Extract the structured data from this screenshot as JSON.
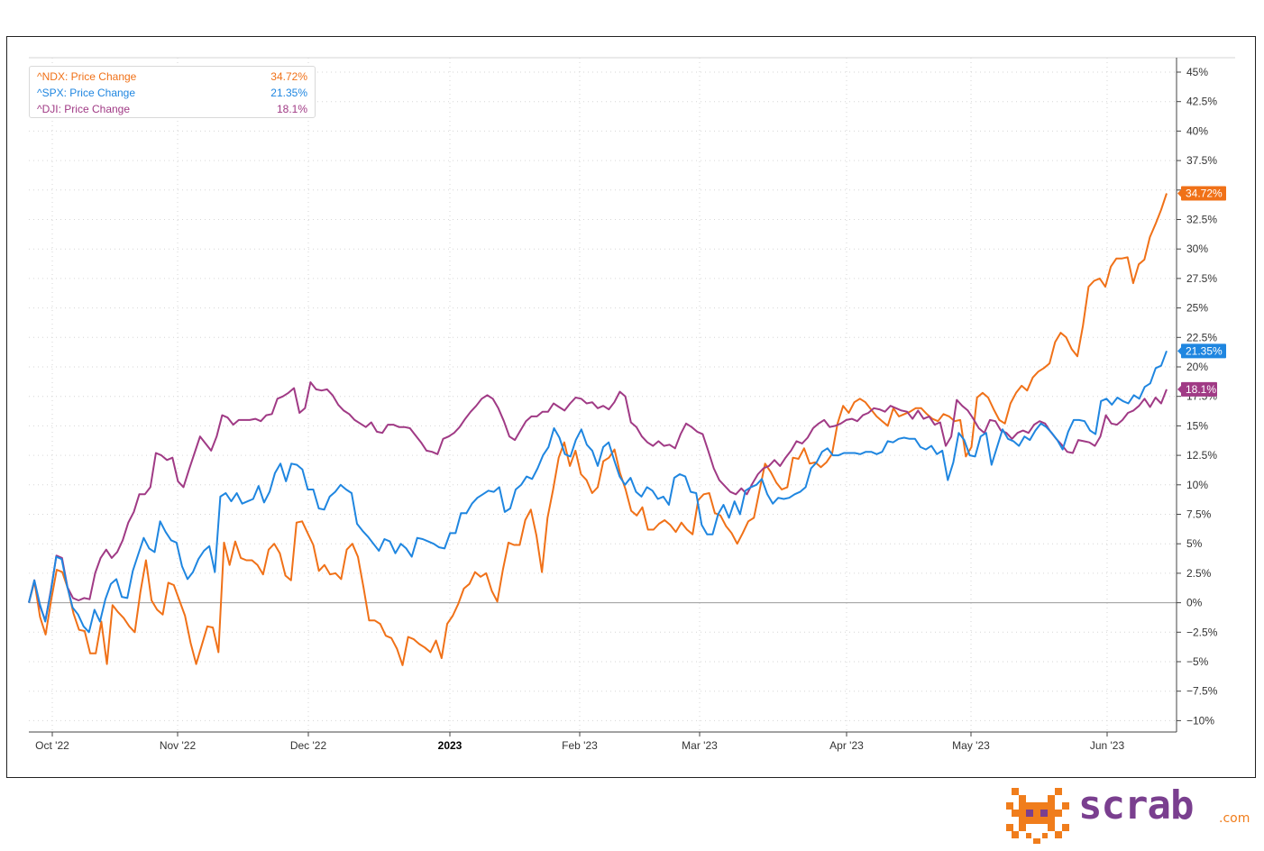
{
  "colors": {
    "ndx": "#f07118",
    "spx": "#1f86e0",
    "dji": "#a03a85",
    "grid": "#d6d6d6",
    "zero_line": "#9a9a9a"
  },
  "legend": [
    {
      "label": "^NDX: Price Change",
      "value": "34.72%",
      "color": "#f07118"
    },
    {
      "label": "^SPX: Price Change",
      "value": "21.35%",
      "color": "#1f86e0"
    },
    {
      "label": "^DJI: Price Change",
      "value": "18.1%",
      "color": "#a03a85"
    }
  ],
  "logo": {
    "word": "scrab",
    "suffix": ".com"
  },
  "chart_data": {
    "type": "line",
    "xlabel": "",
    "ylabel": "",
    "x_ticks": [
      "Oct '22",
      "Nov '22",
      "Dec '22",
      "2023",
      "Feb '23",
      "Mar '23",
      "Apr '23",
      "May '23",
      "Jun '23"
    ],
    "x_tick_bold": "2023",
    "y_ticks": [
      "45%",
      "42.5%",
      "40%",
      "37.5%",
      "35%",
      "32.5%",
      "30%",
      "27.5%",
      "25%",
      "22.5%",
      "20%",
      "17.5%",
      "15%",
      "12.5%",
      "10%",
      "7.5%",
      "5%",
      "2.5%",
      "0%",
      "−2.5%",
      "−5%",
      "−7.5%",
      "−10%"
    ],
    "ylim": [
      -11,
      46.5
    ],
    "grid": true,
    "legend_position": "top-left",
    "series": [
      {
        "name": "^NDX: Price Change",
        "last_label": "34.72%",
        "values": [
          0,
          1.8,
          -1.2,
          -2.7,
          0.2,
          2.8,
          2.6,
          1.2,
          -0.9,
          -2.3,
          -2.4,
          -4.3,
          -4.3,
          -1.6,
          -5.2,
          -0.2,
          -0.8,
          -1.3,
          -2.0,
          -2.5,
          0.9,
          3.6,
          0.2,
          -0.6,
          -1.0,
          1.7,
          1.5,
          0.2,
          -1.1,
          -3.4,
          -5.2,
          -3.6,
          -2.0,
          -2.1,
          -4.2,
          5.1,
          3.2,
          5.2,
          3.8,
          3.6,
          3.6,
          3.2,
          2.4,
          4.5,
          5.0,
          4.2,
          2.3,
          1.9,
          6.8,
          6.9,
          5.9,
          4.9,
          2.7,
          3.2,
          2.4,
          2.5,
          2.0,
          4.5,
          5.0,
          3.9,
          1.3,
          -1.5,
          -1.5,
          -1.8,
          -2.8,
          -3.0,
          -3.9,
          -5.3,
          -2.9,
          -3.1,
          -3.5,
          -3.8,
          -4.2,
          -3.2,
          -4.7,
          -1.8,
          -1.1,
          -0.1,
          1.2,
          1.6,
          2.6,
          2.2,
          2.5,
          1.0,
          0.1,
          2.8,
          5.1,
          4.9,
          4.9,
          7.0,
          7.9,
          5.7,
          2.6,
          7.2,
          9.6,
          12.3,
          13.6,
          11.6,
          12.9,
          10.9,
          10.4,
          9.3,
          9.8,
          12.0,
          12.3,
          13.0,
          11.0,
          9.6,
          7.8,
          7.4,
          8.1,
          6.2,
          6.2,
          6.7,
          7.0,
          6.6,
          6.0,
          6.8,
          6.2,
          5.8,
          8.7,
          9.2,
          9.3,
          7.6,
          7.4,
          6.5,
          5.9,
          5.0,
          5.9,
          6.9,
          7.2,
          9.5,
          11.8,
          11.1,
          10.2,
          9.6,
          9.8,
          12.3,
          12.2,
          13.1,
          11.8,
          11.9,
          11.5,
          11.9,
          12.6,
          15.2,
          16.7,
          16.1,
          17.0,
          17.3,
          17.0,
          16.4,
          15.8,
          15.4,
          15.0,
          16.5,
          15.8,
          16.0,
          16.2,
          16.5,
          16.5,
          16.0,
          15.6,
          15.4,
          16.0,
          15.8,
          15.4,
          15.5,
          12.4,
          13.2,
          17.4,
          17.8,
          17.4,
          16.4,
          15.5,
          15.2,
          16.9,
          17.8,
          18.4,
          18.0,
          19.1,
          19.6,
          19.9,
          20.3,
          22.1,
          22.9,
          22.5,
          21.5,
          20.9,
          23.5,
          26.8,
          27.3,
          27.5,
          26.8,
          28.5,
          29.2,
          29.2,
          29.3,
          27.1,
          28.7,
          29.1,
          31.0,
          32.1,
          33.3,
          34.72
        ]
      },
      {
        "name": "^SPX: Price Change",
        "last_label": "21.35%",
        "values": [
          0,
          1.9,
          -0.1,
          -1.6,
          0.9,
          3.9,
          3.7,
          1.4,
          -0.4,
          -1.0,
          -2.0,
          -2.5,
          -0.6,
          -1.6,
          0.3,
          1.6,
          2.0,
          0.5,
          0.4,
          2.7,
          4.1,
          5.5,
          4.6,
          4.3,
          6.9,
          6.0,
          5.3,
          5.1,
          3.1,
          2.0,
          2.6,
          3.7,
          4.4,
          4.8,
          2.6,
          9.0,
          9.3,
          8.6,
          9.3,
          8.4,
          8.6,
          8.8,
          9.9,
          8.5,
          9.4,
          11.0,
          11.8,
          10.3,
          11.8,
          11.7,
          11.3,
          9.6,
          9.6,
          8.0,
          7.9,
          9.0,
          9.4,
          10.0,
          9.6,
          9.3,
          6.7,
          6.1,
          5.6,
          5.0,
          4.4,
          5.4,
          5.2,
          4.2,
          5.0,
          4.6,
          3.9,
          5.5,
          5.4,
          5.2,
          5.0,
          4.7,
          4.6,
          5.9,
          5.9,
          7.6,
          7.6,
          8.4,
          8.9,
          9.2,
          9.5,
          9.4,
          9.8,
          7.7,
          8.0,
          9.6,
          10.0,
          10.7,
          10.5,
          11.4,
          12.5,
          13.2,
          14.8,
          14.0,
          12.6,
          12.4,
          13.8,
          14.7,
          13.4,
          12.9,
          11.6,
          13.2,
          13.6,
          12.1,
          10.7,
          10.0,
          10.6,
          9.4,
          9.0,
          9.8,
          9.5,
          8.8,
          9.0,
          8.3,
          10.6,
          10.9,
          10.7,
          9.4,
          9.3,
          6.6,
          5.8,
          5.8,
          7.5,
          8.3,
          7.2,
          8.6,
          7.5,
          9.5,
          9.8,
          10.0,
          10.5,
          9.2,
          8.4,
          8.9,
          8.8,
          8.9,
          9.2,
          9.4,
          9.8,
          11.4,
          11.9,
          12.8,
          13.1,
          12.5,
          12.5,
          12.7,
          12.7,
          12.7,
          12.6,
          12.8,
          12.8,
          12.6,
          12.8,
          13.7,
          13.6,
          13.9,
          14.0,
          13.9,
          13.9,
          13.2,
          13.0,
          13.3,
          12.6,
          12.9,
          10.4,
          11.9,
          14.4,
          13.8,
          12.5,
          12.4,
          14.1,
          14.4,
          11.7,
          13.2,
          14.7,
          13.9,
          13.7,
          13.3,
          14.1,
          13.8,
          14.6,
          15.2,
          14.9,
          14.4,
          13.8,
          13.0,
          14.5,
          15.5,
          15.5,
          15.4,
          14.6,
          14.3,
          17.1,
          17.3,
          16.8,
          17.4,
          17.1,
          16.9,
          17.6,
          17.3,
          18.3,
          18.6,
          19.9,
          20.1,
          21.35
        ]
      },
      {
        "name": "^DJI: Price Change",
        "last_label": "18.1%",
        "values": [
          0,
          1.9,
          -0.3,
          -1.5,
          1.1,
          4.0,
          3.8,
          1.3,
          0.4,
          0.2,
          0.4,
          0.3,
          2.5,
          3.8,
          4.5,
          3.8,
          4.3,
          5.3,
          6.8,
          7.7,
          9.2,
          9.2,
          9.8,
          12.7,
          12.5,
          12.1,
          12.3,
          10.3,
          9.8,
          11.3,
          12.7,
          14.1,
          13.5,
          12.9,
          14.1,
          15.9,
          15.7,
          15.1,
          15.5,
          15.5,
          15.5,
          15.6,
          15.4,
          15.9,
          16.0,
          17.3,
          17.5,
          17.8,
          18.2,
          16.1,
          16.5,
          18.7,
          18.1,
          18.0,
          18.1,
          17.6,
          16.8,
          16.3,
          16.0,
          15.5,
          15.2,
          14.9,
          15.3,
          14.5,
          14.4,
          15.1,
          15.1,
          14.9,
          14.9,
          14.8,
          14.2,
          13.6,
          12.9,
          12.8,
          12.6,
          13.9,
          14.1,
          14.4,
          14.9,
          15.6,
          16.2,
          16.7,
          17.3,
          17.6,
          17.3,
          16.5,
          15.4,
          14.1,
          13.8,
          14.6,
          15.4,
          15.8,
          15.8,
          16.2,
          16.2,
          16.9,
          16.6,
          16.3,
          16.9,
          17.4,
          17.3,
          16.9,
          17.0,
          16.5,
          16.7,
          16.4,
          17.0,
          17.9,
          17.5,
          15.3,
          14.9,
          14.1,
          13.6,
          13.3,
          13.7,
          13.3,
          13.4,
          13.1,
          14.3,
          15.2,
          14.9,
          14.5,
          14.3,
          12.9,
          11.4,
          10.4,
          9.9,
          9.4,
          9.2,
          9.7,
          9.2,
          10.1,
          10.9,
          11.4,
          11.6,
          12.1,
          11.6,
          12.3,
          12.9,
          13.7,
          13.5,
          14.0,
          14.8,
          15.2,
          15.5,
          14.9,
          15.0,
          15.2,
          15.5,
          15.6,
          15.4,
          15.9,
          16.1,
          16.5,
          16.4,
          16.2,
          16.7,
          16.5,
          16.3,
          16.2,
          15.6,
          16.3,
          15.6,
          15.8,
          15.1,
          15.3,
          13.3,
          14.1,
          17.2,
          16.7,
          16.3,
          15.6,
          14.8,
          14.4,
          15.5,
          15.4,
          14.6,
          14.4,
          13.9,
          14.4,
          14.6,
          14.4,
          15.1,
          15.4,
          15.2,
          14.5,
          13.9,
          13.4,
          12.8,
          12.7,
          13.8,
          13.7,
          13.6,
          13.3,
          14.1,
          15.9,
          15.2,
          15.1,
          15.5,
          16.1,
          16.3,
          16.7,
          17.3,
          16.6,
          17.4,
          16.9,
          18.1
        ]
      }
    ]
  }
}
